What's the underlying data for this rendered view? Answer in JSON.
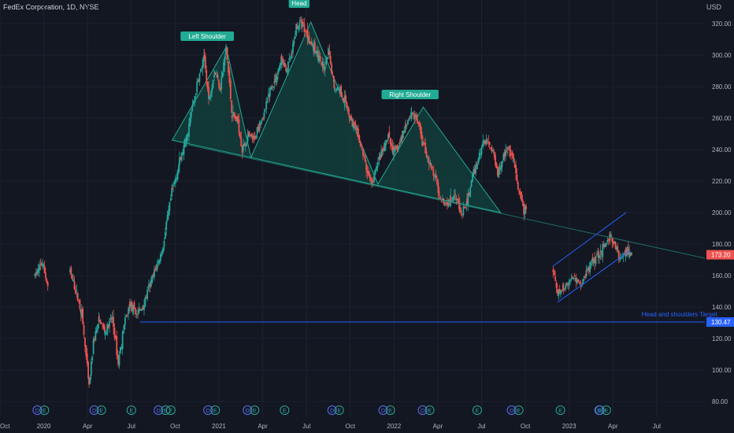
{
  "header": {
    "title": "FedEx Corporation, 1D, NYSE",
    "currency": "USD"
  },
  "chart_data": {
    "type": "candlestick",
    "symbol": "FedEx Corporation, 1D, NYSE",
    "y_ticks": [
      80,
      100,
      120,
      140,
      160,
      180,
      200,
      220,
      240,
      260,
      280,
      300,
      320
    ],
    "ylim": [
      70,
      335
    ],
    "x_labels": [
      "Oct",
      "2020",
      "Apr",
      "Jul",
      "Oct",
      "2021",
      "Apr",
      "Jul",
      "Oct",
      "2022",
      "Apr",
      "Jul",
      "Oct",
      "2023",
      "Apr",
      "Jul"
    ],
    "x_label_months": [
      0,
      3,
      6,
      9,
      12,
      15,
      18,
      21,
      24,
      27,
      30,
      33,
      36,
      39,
      42,
      45
    ],
    "xlim_months": [
      0,
      48.3
    ],
    "last_price": "173.20",
    "target_price": "130.47",
    "target_line": {
      "value": 130.5,
      "from_month": 9.6,
      "to_month": 48.3
    },
    "annotations": [
      {
        "label": "Left Shoulder",
        "month": 14.2,
        "value": 311
      },
      {
        "label": "Head",
        "month": 20.5,
        "value": 332
      },
      {
        "label": "Right Shoulder",
        "month": 28.1,
        "value": 274
      },
      {
        "label": "Head and shoulders Target",
        "month": 44.5,
        "value": 134
      }
    ],
    "pattern_polygon": [
      [
        11.8,
        246
      ],
      [
        15.5,
        305
      ],
      [
        17.2,
        235
      ],
      [
        21.3,
        321
      ],
      [
        25.9,
        218
      ],
      [
        29.0,
        267
      ],
      [
        34.3,
        200
      ]
    ],
    "neckline": {
      "from": [
        12.9,
        243
      ],
      "to": [
        48.3,
        171
      ]
    },
    "channel": {
      "upper": {
        "from": [
          37.9,
          166
        ],
        "to": [
          42.9,
          200
        ]
      },
      "lower": {
        "from": [
          38.2,
          143
        ],
        "to": [
          43.2,
          176
        ]
      }
    },
    "price_path": [
      [
        0,
        142
      ],
      [
        0.8,
        155
      ],
      [
        1.6,
        165
      ],
      [
        2.4,
        160
      ],
      [
        2.9,
        168
      ],
      [
        3.3,
        152
      ],
      [
        4.0,
        160
      ],
      [
        4.8,
        162
      ],
      [
        5.1,
        153
      ],
      [
        5.6,
        136
      ],
      [
        5.9,
        108
      ],
      [
        6.1,
        89
      ],
      [
        6.4,
        118
      ],
      [
        6.8,
        132
      ],
      [
        7.2,
        124
      ],
      [
        7.7,
        133
      ],
      [
        8.1,
        105
      ],
      [
        8.5,
        128
      ],
      [
        8.9,
        142
      ],
      [
        9.3,
        135
      ],
      [
        9.8,
        140
      ],
      [
        10.2,
        152
      ],
      [
        10.7,
        165
      ],
      [
        11.1,
        175
      ],
      [
        11.4,
        192
      ],
      [
        11.8,
        214
      ],
      [
        12.3,
        232
      ],
      [
        12.8,
        248
      ],
      [
        13.2,
        268
      ],
      [
        13.6,
        285
      ],
      [
        14.0,
        298
      ],
      [
        14.3,
        272
      ],
      [
        14.7,
        290
      ],
      [
        15.1,
        280
      ],
      [
        15.5,
        305
      ],
      [
        15.9,
        262
      ],
      [
        16.3,
        258
      ],
      [
        16.6,
        240
      ],
      [
        17.0,
        248
      ],
      [
        17.4,
        246
      ],
      [
        17.8,
        258
      ],
      [
        18.1,
        262
      ],
      [
        18.5,
        278
      ],
      [
        18.9,
        285
      ],
      [
        19.3,
        298
      ],
      [
        19.6,
        290
      ],
      [
        20.0,
        300
      ],
      [
        20.3,
        318
      ],
      [
        20.7,
        320
      ],
      [
        21.1,
        312
      ],
      [
        21.5,
        304
      ],
      [
        21.8,
        300
      ],
      [
        22.2,
        290
      ],
      [
        22.5,
        302
      ],
      [
        22.9,
        280
      ],
      [
        23.3,
        278
      ],
      [
        23.7,
        270
      ],
      [
        24.0,
        260
      ],
      [
        24.4,
        252
      ],
      [
        24.8,
        240
      ],
      [
        25.1,
        228
      ],
      [
        25.5,
        218
      ],
      [
        25.9,
        232
      ],
      [
        26.3,
        240
      ],
      [
        26.6,
        248
      ],
      [
        27.0,
        238
      ],
      [
        27.4,
        244
      ],
      [
        27.8,
        256
      ],
      [
        28.2,
        264
      ],
      [
        28.6,
        258
      ],
      [
        29.0,
        244
      ],
      [
        29.4,
        232
      ],
      [
        29.8,
        222
      ],
      [
        30.1,
        212
      ],
      [
        30.5,
        206
      ],
      [
        30.9,
        208
      ],
      [
        31.2,
        214
      ],
      [
        31.6,
        198
      ],
      [
        32.0,
        206
      ],
      [
        32.3,
        220
      ],
      [
        32.7,
        232
      ],
      [
        33.1,
        244
      ],
      [
        33.4,
        246
      ],
      [
        33.8,
        238
      ],
      [
        34.1,
        226
      ],
      [
        34.5,
        236
      ],
      [
        34.8,
        240
      ],
      [
        35.2,
        232
      ],
      [
        35.5,
        214
      ],
      [
        35.9,
        202
      ],
      [
        36.1,
        204
      ],
      [
        37.0,
        200
      ],
      [
        37.9,
        162
      ],
      [
        38.2,
        148
      ],
      [
        38.6,
        152
      ],
      [
        39.0,
        156
      ],
      [
        39.4,
        160
      ],
      [
        39.8,
        154
      ],
      [
        40.2,
        162
      ],
      [
        40.6,
        170
      ],
      [
        41.0,
        174
      ],
      [
        41.4,
        178
      ],
      [
        41.8,
        184
      ],
      [
        42.1,
        180
      ],
      [
        42.5,
        170
      ],
      [
        42.9,
        176
      ],
      [
        43.3,
        173
      ]
    ],
    "earnings_markers": [
      {
        "month": 2.8,
        "labels": [
          "D",
          "E"
        ]
      },
      {
        "month": 6.7,
        "labels": [
          "D",
          "E"
        ]
      },
      {
        "month": 9.0,
        "labels": [
          "E"
        ]
      },
      {
        "month": 11.1,
        "labels": [
          "D",
          "E"
        ]
      },
      {
        "month": 11.7,
        "labels": [
          "E"
        ]
      },
      {
        "month": 14.5,
        "labels": [
          "D",
          "E"
        ]
      },
      {
        "month": 17.2,
        "labels": [
          "D",
          "E"
        ]
      },
      {
        "month": 19.5,
        "labels": [
          "E"
        ]
      },
      {
        "month": 23.0,
        "labels": [
          "D",
          "E"
        ]
      },
      {
        "month": 26.5,
        "labels": [
          "D",
          "E"
        ]
      },
      {
        "month": 29.2,
        "labels": [
          "D",
          "E"
        ]
      },
      {
        "month": 32.7,
        "labels": [
          "E"
        ]
      },
      {
        "month": 35.3,
        "labels": [
          "D",
          "E"
        ]
      },
      {
        "month": 38.4,
        "labels": [
          "E"
        ]
      },
      {
        "month": 41.1,
        "labels": [
          "E"
        ]
      },
      {
        "month": 41.3,
        "labels": [
          "D",
          "E"
        ]
      }
    ]
  },
  "colors": {
    "background": "#131722",
    "grid": "#1e222d",
    "text": "#b2b5be",
    "up": "#26a69a",
    "down": "#ef5350",
    "pattern_fill": "#12433f",
    "pattern_line": "#22ab94",
    "neckline": "#1e6f64",
    "channel": "#2962ff",
    "target": "#2962ff",
    "last_price": "#ef5350",
    "annotation_bg": "#22ab94"
  }
}
